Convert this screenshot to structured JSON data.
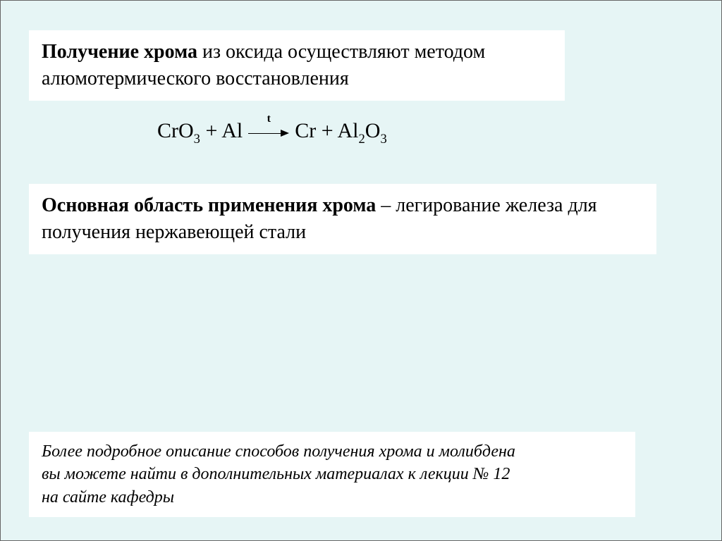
{
  "colors": {
    "page_bg": "#e6f5f5",
    "box_bg": "#ffffff",
    "text": "#000000",
    "border": "#666666"
  },
  "fonts": {
    "body_family": "Times New Roman",
    "body_size_pt": 28,
    "footnote_size_pt": 24,
    "equation_size_pt": 30
  },
  "box1": {
    "bold_lead": "Получение хрома",
    "rest": " из оксида осуществляют методом алюмотермического восстановления"
  },
  "equation": {
    "r1_base": "CrO",
    "r1_sub": "3",
    "plus1": " + ",
    "r2": "Al",
    "arrow_label": "t",
    "p1": "Cr",
    "plus2": " + ",
    "p2_base": "Al",
    "p2_sub1": "2",
    "p2_mid": "O",
    "p2_sub2": "3"
  },
  "box2": {
    "bold_lead": "Основная область применения хрома",
    "rest": " – легирование железа для получения нержавеющей стали"
  },
  "box3": {
    "line1": "Более подробное описание способов получения хрома и молибдена",
    "line2": "вы можете найти в дополнительных материалах к лекции № 12",
    "line3": "на сайте кафедры"
  }
}
